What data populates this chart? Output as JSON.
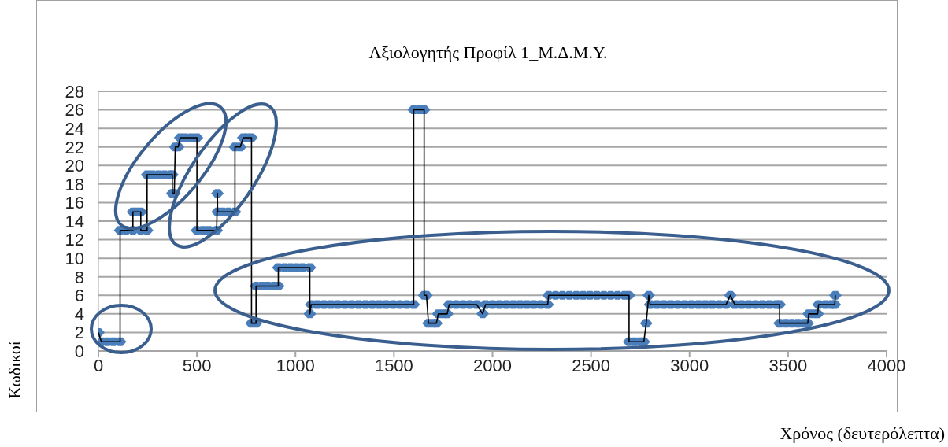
{
  "chart_data": {
    "type": "scatter",
    "title": "Αξιολογητής Προφίλ 1_Μ.Δ.Μ.Υ.",
    "xlabel": "Χρόνος (δευτερόλεπτα)",
    "ylabel": "Κωδικοί",
    "xlim": [
      0,
      4000
    ],
    "xticks": [
      0,
      500,
      1000,
      1500,
      2000,
      2500,
      3000,
      3500,
      4000
    ],
    "ylim": [
      0,
      28
    ],
    "yticks": [
      0,
      2,
      4,
      6,
      8,
      10,
      12,
      14,
      16,
      18,
      20,
      22,
      24,
      26,
      28
    ],
    "grid": "y",
    "legend": false,
    "series": [
      {
        "type": "line",
        "color": "#000000",
        "marker": "none",
        "line_style": "solid",
        "x": [
          0,
          15,
          45,
          75,
          110,
          110,
          140,
          175,
          175,
          195,
          215,
          215,
          247,
          247,
          275,
          305,
          335,
          365,
          375,
          375,
          385,
          390,
          405,
          415,
          440,
          470,
          500,
          500,
          530,
          560,
          600,
          604,
          605,
          630,
          660,
          693,
          693,
          720,
          735,
          755,
          777,
          777,
          800,
          800,
          830,
          860,
          890,
          913,
          913,
          945,
          975,
          1005,
          1035,
          1073,
          1073,
          1080,
          1110,
          1145,
          1180,
          1215,
          1250,
          1285,
          1320,
          1355,
          1390,
          1425,
          1460,
          1495,
          1530,
          1565,
          1600,
          1600,
          1630,
          1653,
          1653,
          1665,
          1675,
          1700,
          1715,
          1725,
          1750,
          1770,
          1780,
          1815,
          1850,
          1885,
          1920,
          1950,
          1965,
          2000,
          2035,
          2070,
          2105,
          2140,
          2175,
          2210,
          2245,
          2280,
          2285,
          2320,
          2355,
          2390,
          2425,
          2460,
          2495,
          2530,
          2565,
          2600,
          2635,
          2670,
          2693,
          2693,
          2720,
          2750,
          2768,
          2780,
          2793,
          2800,
          2835,
          2870,
          2905,
          2940,
          2975,
          3010,
          3045,
          3080,
          3115,
          3150,
          3185,
          3207,
          3230,
          3265,
          3300,
          3335,
          3370,
          3405,
          3440,
          3457,
          3457,
          3490,
          3520,
          3550,
          3580,
          3600,
          3605,
          3630,
          3650,
          3655,
          3690,
          3720,
          3737,
          3740
        ],
        "values": [
          2,
          1,
          1,
          1,
          1,
          13,
          13,
          13,
          15,
          15,
          15,
          13,
          13,
          19,
          19,
          19,
          19,
          19,
          19,
          17,
          17,
          22,
          22,
          23,
          23,
          23,
          23,
          13,
          13,
          13,
          13,
          17,
          15,
          15,
          15,
          15,
          22,
          22,
          23,
          23,
          23,
          3,
          3,
          7,
          7,
          7,
          7,
          7,
          9,
          9,
          9,
          9,
          9,
          9,
          4,
          5,
          5,
          5,
          5,
          5,
          5,
          5,
          5,
          5,
          5,
          5,
          5,
          5,
          5,
          5,
          5,
          26,
          26,
          26,
          6,
          6,
          3,
          3,
          3,
          4,
          4,
          4,
          5,
          5,
          5,
          5,
          5,
          4,
          5,
          5,
          5,
          5,
          5,
          5,
          5,
          5,
          5,
          5,
          6,
          6,
          6,
          6,
          6,
          6,
          6,
          6,
          6,
          6,
          6,
          6,
          6,
          1,
          1,
          1,
          1,
          3,
          6,
          5,
          5,
          5,
          5,
          5,
          5,
          5,
          5,
          5,
          5,
          5,
          5,
          6,
          5,
          5,
          5,
          5,
          5,
          5,
          5,
          5,
          3,
          3,
          3,
          3,
          3,
          3,
          4,
          4,
          4,
          5,
          5,
          5,
          5,
          6
        ]
      },
      {
        "color": "#4a7ebb",
        "marker": "diamond",
        "x": [
          0,
          15,
          45,
          75,
          110,
          110,
          140,
          175,
          175,
          195,
          215,
          215,
          247,
          247,
          275,
          305,
          335,
          365,
          375,
          375,
          385,
          390,
          405,
          415,
          440,
          470,
          500,
          500,
          530,
          560,
          600,
          604,
          605,
          630,
          660,
          693,
          693,
          720,
          735,
          755,
          777,
          777,
          800,
          800,
          830,
          860,
          890,
          913,
          913,
          945,
          975,
          1005,
          1035,
          1073,
          1073,
          1080,
          1110,
          1145,
          1180,
          1215,
          1250,
          1285,
          1320,
          1355,
          1390,
          1425,
          1460,
          1495,
          1530,
          1565,
          1600,
          1600,
          1630,
          1653,
          1653,
          1665,
          1675,
          1700,
          1715,
          1725,
          1750,
          1770,
          1780,
          1815,
          1850,
          1885,
          1920,
          1950,
          1965,
          2000,
          2035,
          2070,
          2105,
          2140,
          2175,
          2210,
          2245,
          2280,
          2285,
          2320,
          2355,
          2390,
          2425,
          2460,
          2495,
          2530,
          2565,
          2600,
          2635,
          2670,
          2693,
          2693,
          2720,
          2750,
          2768,
          2780,
          2793,
          2800,
          2835,
          2870,
          2905,
          2940,
          2975,
          3010,
          3045,
          3080,
          3115,
          3150,
          3185,
          3207,
          3230,
          3265,
          3300,
          3335,
          3370,
          3405,
          3440,
          3457,
          3457,
          3490,
          3520,
          3550,
          3580,
          3600,
          3605,
          3630,
          3650,
          3655,
          3690,
          3720,
          3737,
          3740
        ],
        "values": [
          2,
          1,
          1,
          1,
          1,
          13,
          13,
          13,
          15,
          15,
          15,
          13,
          13,
          19,
          19,
          19,
          19,
          19,
          19,
          17,
          17,
          22,
          22,
          23,
          23,
          23,
          23,
          13,
          13,
          13,
          13,
          17,
          15,
          15,
          15,
          15,
          22,
          22,
          23,
          23,
          23,
          3,
          3,
          7,
          7,
          7,
          7,
          7,
          9,
          9,
          9,
          9,
          9,
          9,
          4,
          5,
          5,
          5,
          5,
          5,
          5,
          5,
          5,
          5,
          5,
          5,
          5,
          5,
          5,
          5,
          5,
          26,
          26,
          26,
          6,
          6,
          3,
          3,
          3,
          4,
          4,
          4,
          5,
          5,
          5,
          5,
          5,
          4,
          5,
          5,
          5,
          5,
          5,
          5,
          5,
          5,
          5,
          5,
          6,
          6,
          6,
          6,
          6,
          6,
          6,
          6,
          6,
          6,
          6,
          6,
          6,
          1,
          1,
          1,
          1,
          3,
          6,
          5,
          5,
          5,
          5,
          5,
          5,
          5,
          5,
          5,
          5,
          5,
          5,
          6,
          5,
          5,
          5,
          5,
          5,
          5,
          5,
          5,
          3,
          3,
          3,
          3,
          3,
          3,
          4,
          4,
          4,
          5,
          5,
          5,
          5,
          6
        ]
      }
    ]
  }
}
